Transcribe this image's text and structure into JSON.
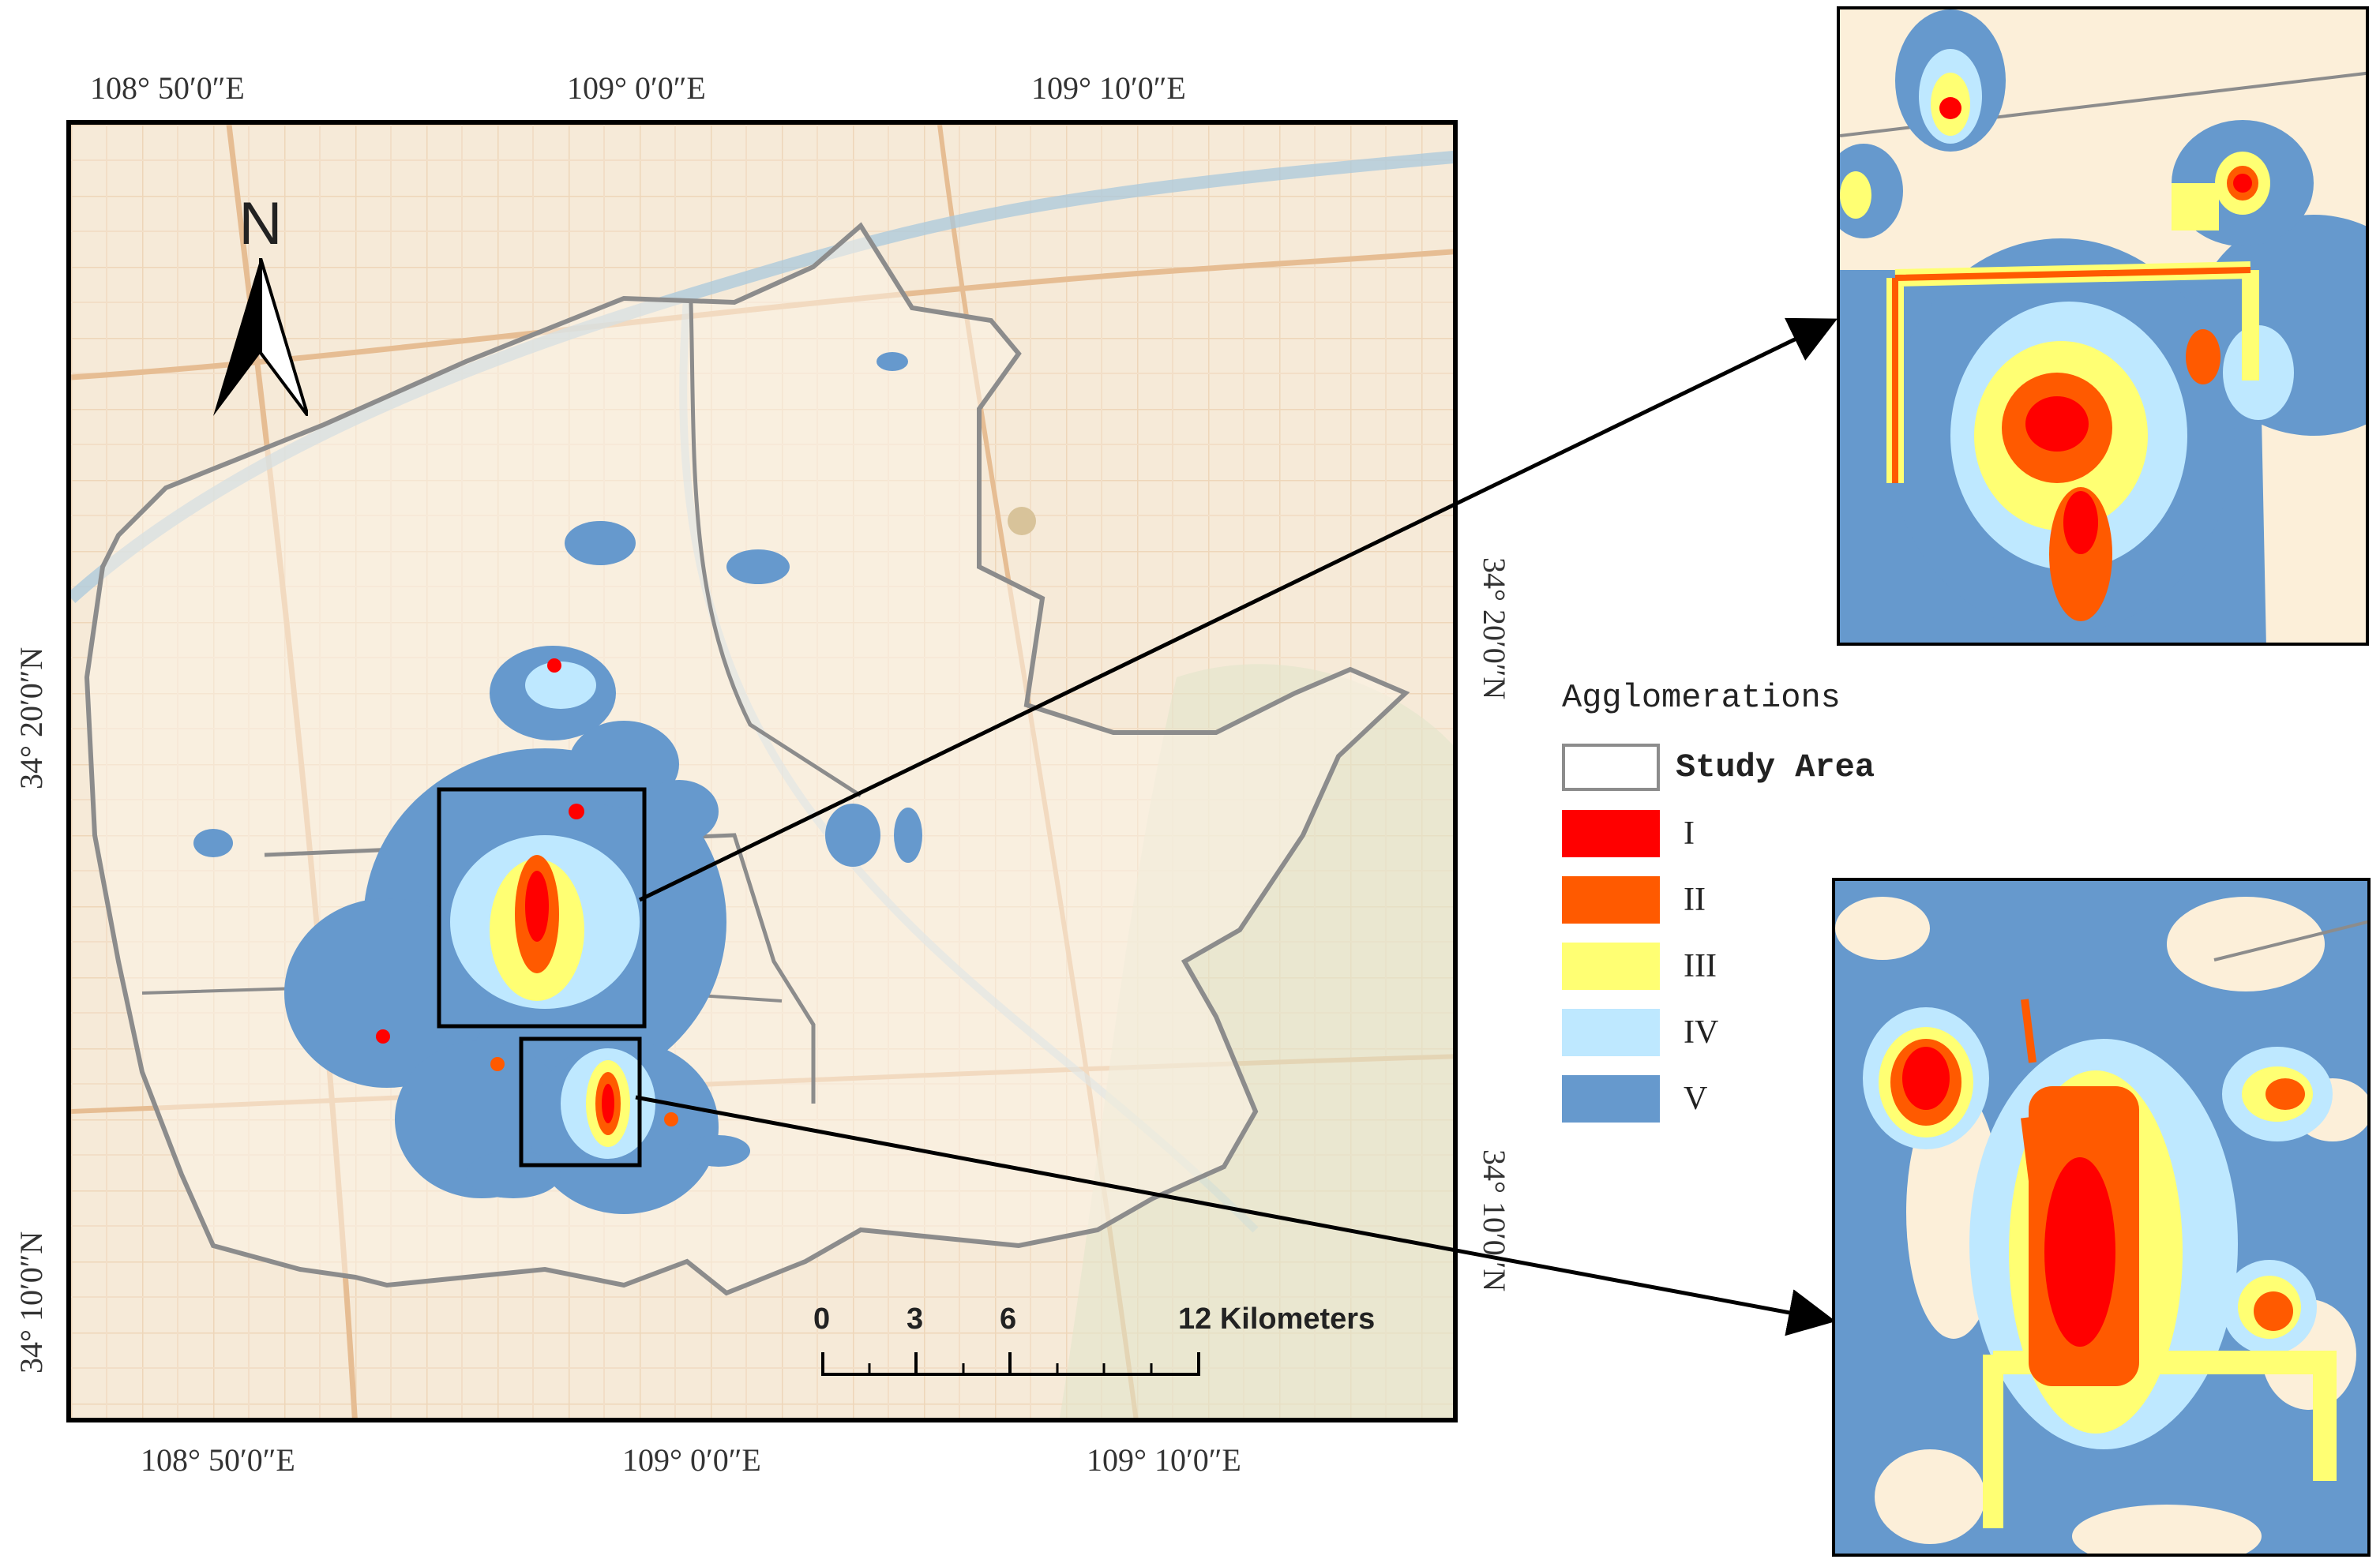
{
  "map": {
    "top_coords": [
      "108° 50′0″E",
      "109° 0′0″E",
      "109° 10′0″E"
    ],
    "bottom_coords": [
      "108° 50′0″E",
      "109° 0′0″E",
      "109° 10′0″E"
    ],
    "left_coords": [
      "34° 20′0″N",
      "34° 10′0″N"
    ],
    "right_coords": [
      "34° 20′0″N",
      "34° 10′0″N"
    ],
    "north_label": "N"
  },
  "scale_bar": {
    "labels": [
      "0",
      "3",
      "6",
      "12 Kilometers"
    ]
  },
  "legend": {
    "title": "Agglomerations",
    "items": [
      {
        "label": "Study Area",
        "color": "#ffffff"
      },
      {
        "label": "I",
        "color": "#ff0000"
      },
      {
        "label": "II",
        "color": "#ff5a00"
      },
      {
        "label": "III",
        "color": "#ffff73"
      },
      {
        "label": "IV",
        "color": "#bee8ff"
      },
      {
        "label": "V",
        "color": "#6699cd"
      }
    ]
  },
  "colors": {
    "basemap": "#f6ead8",
    "road": "#e9c9a6",
    "boundary": "#8c8c8c",
    "river": "#a9c8dc",
    "inset_background": "#fcefd9"
  }
}
